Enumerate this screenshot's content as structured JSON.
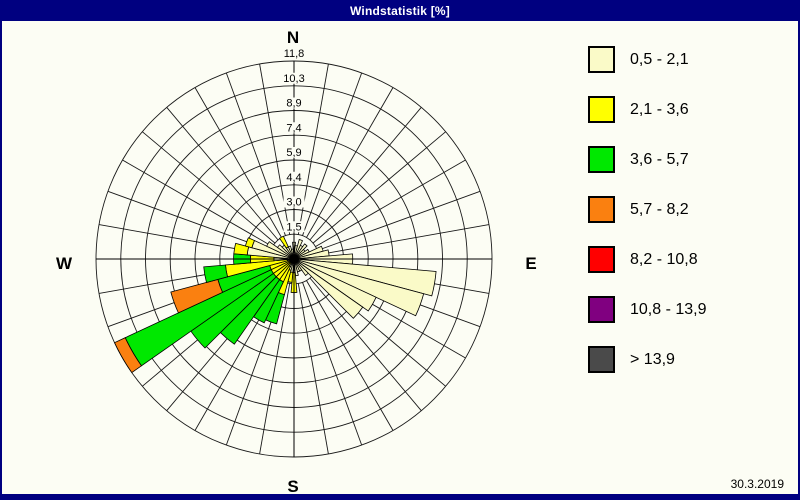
{
  "window": {
    "title": "Windstatistik [%]"
  },
  "compass": {
    "north": "N",
    "east": "E",
    "south": "S",
    "west": "W"
  },
  "footer": {
    "date": "30.3.2019"
  },
  "colors": {
    "title_bar": "#000080",
    "window_border": "#000080",
    "content_bg": "#FCFDF4",
    "grid": "#1a1a1a",
    "axis": "#000000"
  },
  "chart_data": {
    "type": "wind_rose",
    "title": "Windstatistik [%]",
    "units": "percent_frequency",
    "sector_width_deg": 10,
    "radial_axis": {
      "max": 11.8,
      "ring_values": [
        1.475,
        2.95,
        4.425,
        5.9,
        7.375,
        8.85,
        10.325,
        11.8
      ],
      "ring_labels": [
        "1,5",
        "3,0",
        "4,4",
        "5,9",
        "7,4",
        "8,9",
        "10,3",
        "11,8"
      ]
    },
    "speed_classes": [
      {
        "label": "0,5 - 2,1",
        "color": "#FAFAC8"
      },
      {
        "label": "2,1 - 3,6",
        "color": "#FFFF00"
      },
      {
        "label": "3,6 - 5,7",
        "color": "#00E800"
      },
      {
        "label": "5,7 - 8,2",
        "color": "#FA8010"
      },
      {
        "label": "8,2 - 10,8",
        "color": "#FF0000"
      },
      {
        "label": "10,8 - 13,9",
        "color": "#800080"
      },
      {
        "label": "> 13,9",
        "color": "#4A4A4A"
      }
    ],
    "sectors": [
      {
        "dir": 0,
        "segments": [
          [
            0,
            0,
            1.0
          ]
        ]
      },
      {
        "dir": 10,
        "segments": [
          [
            0,
            0,
            0.8
          ]
        ]
      },
      {
        "dir": 20,
        "segments": [
          [
            0,
            0,
            1.2
          ]
        ]
      },
      {
        "dir": 30,
        "segments": [
          [
            0,
            0,
            0.9
          ]
        ]
      },
      {
        "dir": 40,
        "segments": [
          [
            0,
            0,
            1.1
          ]
        ]
      },
      {
        "dir": 50,
        "segments": [
          [
            0,
            0,
            0.8
          ]
        ]
      },
      {
        "dir": 60,
        "segments": [
          [
            0,
            0,
            1.0
          ]
        ]
      },
      {
        "dir": 70,
        "segments": [
          [
            0,
            0,
            1.8
          ]
        ]
      },
      {
        "dir": 80,
        "segments": [
          [
            0,
            0,
            2.1
          ]
        ]
      },
      {
        "dir": 90,
        "segments": [
          [
            0,
            0,
            3.5
          ]
        ]
      },
      {
        "dir": 100,
        "segments": [
          [
            0,
            0,
            8.5
          ]
        ]
      },
      {
        "dir": 110,
        "segments": [
          [
            0,
            0,
            8.0
          ]
        ]
      },
      {
        "dir": 120,
        "segments": [
          [
            0,
            0,
            5.4
          ]
        ]
      },
      {
        "dir": 130,
        "segments": [
          [
            0,
            0,
            5.0
          ]
        ]
      },
      {
        "dir": 140,
        "segments": [
          [
            0,
            0,
            1.2
          ]
        ]
      },
      {
        "dir": 150,
        "segments": [
          [
            0,
            0,
            0.8
          ]
        ]
      },
      {
        "dir": 160,
        "segments": [
          [
            0,
            0,
            0.8
          ]
        ]
      },
      {
        "dir": 170,
        "segments": [
          [
            0,
            0,
            1.0
          ]
        ]
      },
      {
        "dir": 180,
        "segments": [
          [
            0,
            0,
            0.8
          ],
          [
            1,
            0.8,
            2.0
          ]
        ]
      },
      {
        "dir": 190,
        "segments": [
          [
            0,
            0,
            0.8
          ],
          [
            1,
            0.8,
            1.4
          ]
        ]
      },
      {
        "dir": 200,
        "segments": [
          [
            0,
            0,
            0.7
          ],
          [
            1,
            0.7,
            2.2
          ],
          [
            2,
            2.2,
            4.0
          ]
        ]
      },
      {
        "dir": 210,
        "segments": [
          [
            0,
            0,
            0.5
          ],
          [
            1,
            0.5,
            1.5
          ],
          [
            2,
            1.5,
            4.2
          ]
        ]
      },
      {
        "dir": 220,
        "segments": [
          [
            1,
            0,
            1.5
          ],
          [
            2,
            1.5,
            6.2
          ]
        ]
      },
      {
        "dir": 230,
        "segments": [
          [
            1,
            0,
            1.5
          ],
          [
            2,
            1.5,
            7.5
          ]
        ]
      },
      {
        "dir": 240,
        "segments": [
          [
            1,
            0,
            1.5
          ],
          [
            2,
            1.5,
            11.1
          ],
          [
            3,
            11.1,
            11.8
          ]
        ]
      },
      {
        "dir": 250,
        "segments": [
          [
            1,
            0,
            1.5
          ],
          [
            2,
            1.5,
            4.7
          ],
          [
            3,
            4.7,
            7.6
          ]
        ]
      },
      {
        "dir": 260,
        "segments": [
          [
            0,
            0,
            0.4
          ],
          [
            1,
            0.4,
            4.1
          ],
          [
            2,
            4.1,
            5.4
          ]
        ]
      },
      {
        "dir": 270,
        "segments": [
          [
            0,
            0,
            1.2
          ],
          [
            1,
            1.2,
            2.6
          ],
          [
            2,
            2.6,
            3.6
          ]
        ]
      },
      {
        "dir": 280,
        "segments": [
          [
            0,
            0,
            2.8
          ],
          [
            1,
            2.8,
            3.6
          ]
        ]
      },
      {
        "dir": 290,
        "segments": [
          [
            0,
            0,
            2.6
          ],
          [
            1,
            2.6,
            3.0
          ]
        ]
      },
      {
        "dir": 300,
        "segments": [
          [
            0,
            0,
            1.8
          ]
        ]
      },
      {
        "dir": 310,
        "segments": [
          [
            0,
            0,
            1.2
          ]
        ]
      },
      {
        "dir": 320,
        "segments": [
          [
            0,
            0,
            1.0
          ]
        ]
      },
      {
        "dir": 330,
        "segments": [
          [
            0,
            0,
            0.8
          ],
          [
            1,
            0.8,
            1.5
          ]
        ]
      },
      {
        "dir": 340,
        "segments": [
          [
            0,
            0,
            0.8
          ]
        ]
      },
      {
        "dir": 350,
        "segments": [
          [
            0,
            0,
            0.6
          ]
        ]
      }
    ]
  }
}
